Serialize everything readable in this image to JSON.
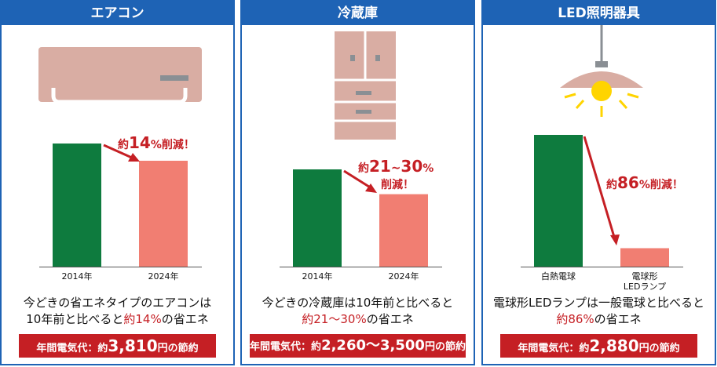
{
  "colors": {
    "header": "#1e63b5",
    "bar_old": "#0e7b3e",
    "bar_new": "#f17e72",
    "accent": "#c51f24",
    "appliance": "#d9ada3"
  },
  "icons": [
    "air-conditioner-icon",
    "refrigerator-icon",
    "pendant-lamp-icon"
  ],
  "panels": [
    {
      "title": "エアコン",
      "annotation": {
        "pre": "約",
        "num": "14",
        "post": "%削減！"
      },
      "desc": {
        "line1": "今どきの省エネタイプのエアコンは",
        "line2_pre": "10年前と比べると",
        "line2_hl": "約14%",
        "line2_post": "の省エネ"
      },
      "cost": {
        "pre": "年間電気代：約",
        "num": "3,810",
        "post": "円の節約"
      }
    },
    {
      "title": "冷蔵庫",
      "annotation": {
        "pre": "約",
        "num": "21",
        "mid": "~",
        "num2": "30",
        "post": "%",
        "line2": "削減！"
      },
      "desc": {
        "line1": "今どきの冷蔵庫は10年前と比べると",
        "line2_pre": "",
        "line2_hl": "約21～30%",
        "line2_post": "の省エネ"
      },
      "cost": {
        "pre": "年間電気代：約",
        "num": "2,260～3,500",
        "post": "円の節約"
      }
    },
    {
      "title": "LED照明器具",
      "annotation": {
        "pre": "約",
        "num": "86",
        "post": "%削減！"
      },
      "desc": {
        "line1": "電球形LEDランプは一般電球と比べると",
        "line2_pre": "",
        "line2_hl": "約86%",
        "line2_post": "の省エネ"
      },
      "cost": {
        "pre": "年間電気代：約",
        "num": "2,880",
        "post": "円の節約"
      }
    }
  ],
  "chart_data": [
    {
      "type": "bar",
      "categories": [
        "2014年",
        "2024年"
      ],
      "values": [
        100,
        86
      ]
    },
    {
      "type": "bar",
      "categories": [
        "2014年",
        "2024年"
      ],
      "values": [
        100,
        74.5
      ]
    },
    {
      "type": "bar",
      "categories": [
        "白熱電球",
        "電球形\nLEDランプ"
      ],
      "values": [
        100,
        14
      ]
    }
  ]
}
